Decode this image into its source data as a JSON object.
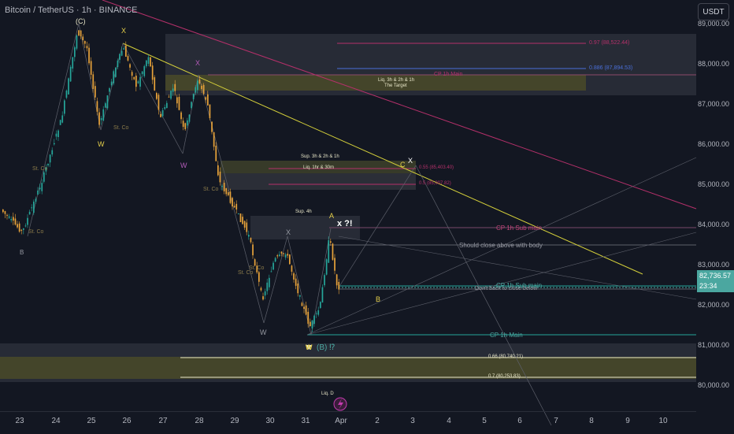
{
  "header": {
    "title": "Bitcoin / TetherUS · 1h · BINANCE",
    "currency_button": "USDT"
  },
  "price_axis": {
    "ticks": [
      "89,000.00",
      "88,000.00",
      "87,000.00",
      "86,000.00",
      "85,000.00",
      "84,000.00",
      "83,000.00",
      "82,000.00",
      "81,000.00",
      "80,000.00"
    ],
    "current_price": "82,736.57",
    "countdown": "23:34"
  },
  "time_axis": {
    "dates": [
      "23",
      "24",
      "25",
      "26",
      "27",
      "28",
      "29",
      "30",
      "31",
      "Apr",
      "2",
      "3",
      "4",
      "5",
      "6",
      "7",
      "8",
      "9",
      "10"
    ]
  },
  "annotations": {
    "fib_097": "0.97 (88,522.44)",
    "fib_0886": "0.886 (87,894.53)",
    "cp_1h_main_top": "CP 1h Main",
    "liq_target": "Liq. 3h & 2h & 1h",
    "the_target": "The Target",
    "sup_3h_2h_1h": "Sup. 3h & 2h & 1h",
    "liq_1hr_30m": "Liq. 1hr & 30m",
    "fib_055": "0.55 (85,403.40)",
    "fib_05": "0.5 (85,007.82)",
    "sup_4h": "Sup. 4h",
    "wave_A": "A",
    "wave_x_q": "x ?!",
    "cp_1h_sub_main_top": "CP 1h Sub main",
    "should_close": "Should close above with body",
    "cp_1h_sub_main_mid": "CP 1h Sub main",
    "dont_back": "Don't back to close below",
    "wave_B": "B",
    "cp_1h_main_bottom": "CP 1h Main",
    "wave_B_q": "(B) ⁉",
    "fib_066": "0.66 (80,740.21)",
    "fib_07": "0.7 (80,253.83)",
    "liq_D": "Liq. D",
    "wave_C_top": "(C)",
    "wave_X1": "X",
    "wave_X2": "X",
    "wave_X3": "X",
    "wave_C": "C",
    "wave_W1": "W",
    "wave_W2": "W",
    "wave_W3": "W",
    "wave_W4": "W",
    "st_co": "St. Co"
  },
  "colors": {
    "background": "#131722",
    "bull": "#e8a33a",
    "bear": "#26a69a",
    "zone_gray": "#2a2e39",
    "zone_olive": "#4a4a28",
    "yellow_line": "#d4cf3a",
    "magenta_line": "#b5306a"
  }
}
